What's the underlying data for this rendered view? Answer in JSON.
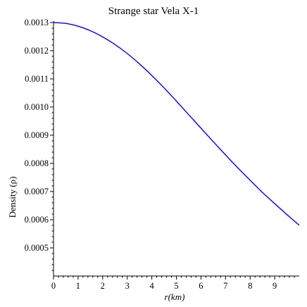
{
  "chart_data": {
    "type": "line",
    "title": "Strange star Vela X-1",
    "xlabel": "r(km)",
    "ylabel": "Density (ρ)",
    "xlim": [
      0,
      10
    ],
    "ylim": [
      0.0004,
      0.0013
    ],
    "x_ticks": [
      0,
      1,
      2,
      3,
      4,
      5,
      6,
      7,
      8,
      9
    ],
    "y_ticks": [
      0.0005,
      0.0006,
      0.0007,
      0.0008,
      0.0009,
      0.001,
      0.0011,
      0.0012,
      0.0013
    ],
    "y_tick_labels": [
      "0.0005",
      "0.0006",
      "0.0007",
      "0.0008",
      "0.0009",
      "0.0010",
      "0.0011",
      "0.0012",
      "0.0013"
    ],
    "grid": false,
    "series": [
      {
        "color": "#0000ff",
        "x": [
          0,
          0.5,
          1,
          1.5,
          2,
          2.5,
          3,
          3.5,
          4,
          4.5,
          5,
          5.5,
          6,
          6.5,
          7,
          7.5,
          8,
          8.5,
          9,
          9.5,
          10
        ],
        "y": [
          0.0013,
          0.001297,
          0.001287,
          0.001271,
          0.001249,
          0.001222,
          0.00119,
          0.001153,
          0.001112,
          0.001068,
          0.001021,
          0.000973,
          0.000925,
          0.000877,
          0.00083,
          0.000784,
          0.00074,
          0.000697,
          0.000657,
          0.000618,
          0.00058
        ]
      }
    ]
  }
}
